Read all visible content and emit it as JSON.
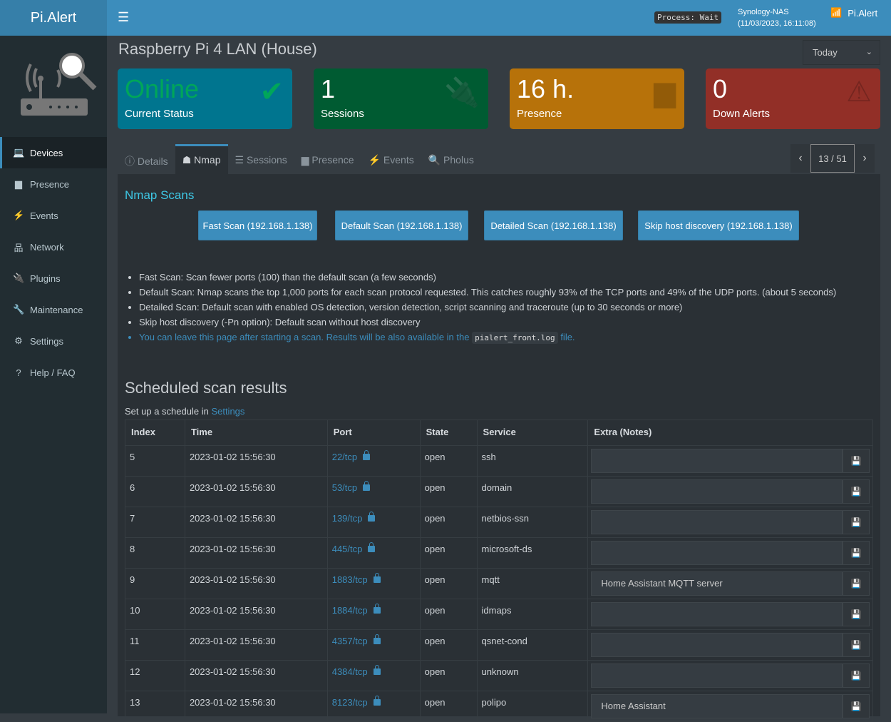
{
  "app": {
    "brand": "Pi.Alert",
    "process": "Process: Wait",
    "host": "Synology-NAS",
    "datetime": "(11/03/2023, 16:11:08)",
    "user": "Pi.Alert"
  },
  "sidebar": {
    "items": [
      {
        "label": "Devices",
        "icon": "laptop-icon",
        "glyph": "💻"
      },
      {
        "label": "Presence",
        "icon": "calendar-icon",
        "glyph": "▆"
      },
      {
        "label": "Events",
        "icon": "bolt-icon",
        "glyph": "⚡"
      },
      {
        "label": "Network",
        "icon": "sitemap-icon",
        "glyph": "品"
      },
      {
        "label": "Plugins",
        "icon": "plug-icon",
        "glyph": "🔌"
      },
      {
        "label": "Maintenance",
        "icon": "wrench-icon",
        "glyph": "🔧"
      },
      {
        "label": "Settings",
        "icon": "gear-icon",
        "glyph": "⚙"
      },
      {
        "label": "Help / FAQ",
        "icon": "question-icon",
        "glyph": "?"
      }
    ]
  },
  "page": {
    "title": "Raspberry Pi 4 LAN (House)",
    "period": "Today"
  },
  "cards": [
    {
      "value": "Online",
      "label": "Current Status",
      "color": "#00758f",
      "icon": "check-icon",
      "glyph": "✔"
    },
    {
      "value": "1",
      "label": "Sessions",
      "color": "#005b32",
      "icon": "plug-icon",
      "glyph": "🔌"
    },
    {
      "value": "16 h.",
      "label": "Presence",
      "color": "#b7720a",
      "icon": "calendar-icon",
      "glyph": "▆"
    },
    {
      "value": "0",
      "label": "Down Alerts",
      "color": "#922f27",
      "icon": "warning-icon",
      "glyph": "⚠"
    }
  ],
  "tabs": [
    {
      "label": "Details",
      "glyph": "ⓘ"
    },
    {
      "label": "Nmap",
      "glyph": "☗"
    },
    {
      "label": "Sessions",
      "glyph": "☰"
    },
    {
      "label": "Presence",
      "glyph": "▆"
    },
    {
      "label": "Events",
      "glyph": "⚡"
    },
    {
      "label": "Pholus",
      "glyph": "🔍"
    }
  ],
  "pager": {
    "position": "13 / 51"
  },
  "nmap": {
    "heading": "Nmap Scans",
    "buttons": [
      "Fast Scan (192.168.1.138)",
      "Default Scan (192.168.1.138)",
      "Detailed Scan (192.168.1.138)",
      "Skip host discovery (192.168.1.138)"
    ],
    "notes": [
      "Fast Scan: Scan fewer ports (100) than the default scan (a few seconds)",
      "Default Scan: Nmap scans the top 1,000 ports for each scan protocol requested. This catches roughly 93% of the TCP ports and 49% of the UDP ports. (about 5 seconds)",
      "Detailed Scan: Default scan with enabled OS detection, version detection, script scanning and traceroute (up to 30 seconds or more)",
      "Skip host discovery (-Pn option): Default scan without host discovery"
    ],
    "info_pre": "You can leave this page after starting a scan. Results will be also available in the",
    "info_code": "pialert_front.log",
    "info_post": "file."
  },
  "scheduled": {
    "heading": "Scheduled scan results",
    "setup_text": "Set up a schedule in",
    "setup_link": "Settings",
    "columns": [
      "Index",
      "Time",
      "Port",
      "State",
      "Service",
      "Extra (Notes)"
    ],
    "rows": [
      [
        "5",
        "2023-01-02 15:56:30",
        "22/tcp",
        "open",
        "ssh",
        ""
      ],
      [
        "6",
        "2023-01-02 15:56:30",
        "53/tcp",
        "open",
        "domain",
        ""
      ],
      [
        "7",
        "2023-01-02 15:56:30",
        "139/tcp",
        "open",
        "netbios-ssn",
        ""
      ],
      [
        "8",
        "2023-01-02 15:56:30",
        "445/tcp",
        "open",
        "microsoft-ds",
        ""
      ],
      [
        "9",
        "2023-01-02 15:56:30",
        "1883/tcp",
        "open",
        "mqtt",
        "Home Assistant MQTT server"
      ],
      [
        "10",
        "2023-01-02 15:56:30",
        "1884/tcp",
        "open",
        "idmaps",
        ""
      ],
      [
        "11",
        "2023-01-02 15:56:30",
        "4357/tcp",
        "open",
        "qsnet-cond",
        ""
      ],
      [
        "12",
        "2023-01-02 15:56:30",
        "4384/tcp",
        "open",
        "unknown",
        ""
      ],
      [
        "13",
        "2023-01-02 15:56:30",
        "8123/tcp",
        "open",
        "polipo",
        "Home Assistant"
      ]
    ]
  }
}
